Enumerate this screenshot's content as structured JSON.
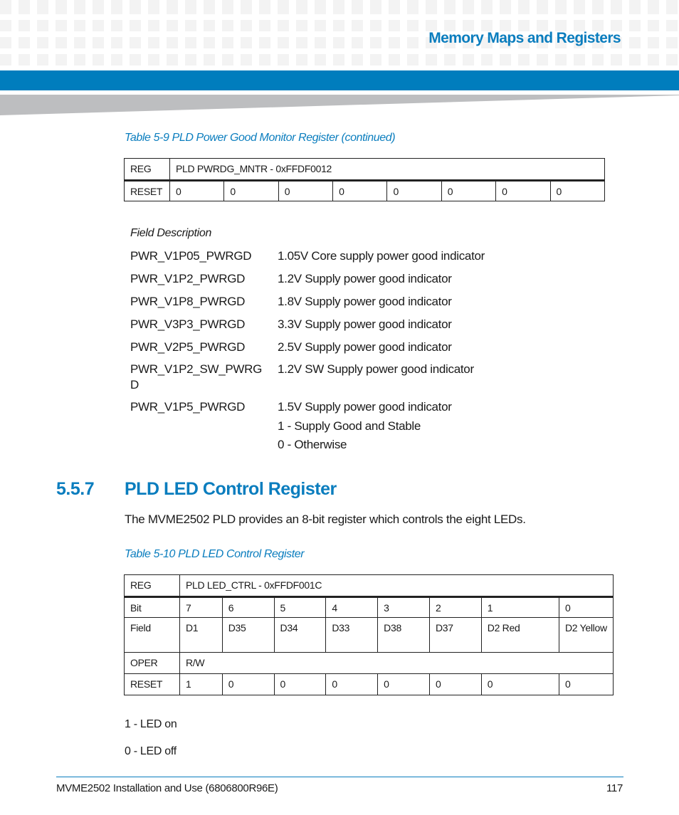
{
  "header": {
    "title": "Memory Maps and Registers"
  },
  "table1": {
    "caption": "Table 5-9 PLD Power Good Monitor Register  (continued)",
    "reg_label": "REG",
    "reg_value": "PLD PWRDG_MNTR - 0xFFDF0012",
    "reset_label": "RESET",
    "reset_values": [
      "0",
      "0",
      "0",
      "0",
      "0",
      "0",
      "0",
      "0"
    ]
  },
  "field_description": {
    "heading": "Field Description",
    "items": [
      {
        "name": "PWR_V1P05_PWRGD",
        "desc": "1.05V Core supply power good indicator"
      },
      {
        "name": "PWR_V1P2_PWRGD",
        "desc": "1.2V Supply power good indicator"
      },
      {
        "name": "PWR_V1P8_PWRGD",
        "desc": "1.8V Supply power good indicator"
      },
      {
        "name": "PWR_V3P3_PWRGD",
        "desc": "3.3V Supply power good indicator"
      },
      {
        "name": "PWR_V2P5_PWRGD",
        "desc": "2.5V Supply power good indicator"
      },
      {
        "name": "PWR_V1P2_SW_PWRG",
        "name_cont": "D",
        "desc": "1.2V SW Supply power good indicator"
      },
      {
        "name": "PWR_V1P5_PWRGD",
        "desc": "1.5V Supply power good indicator"
      }
    ],
    "notes": [
      "1 - Supply Good and Stable",
      "0 - Otherwise"
    ]
  },
  "section": {
    "number": "5.5.7",
    "title": "PLD LED Control Register",
    "body": "The MVME2502 PLD provides an 8-bit register which controls the eight LEDs."
  },
  "table2": {
    "caption": "Table 5-10 PLD LED Control Register",
    "reg_label": "REG",
    "reg_value": "PLD LED_CTRL - 0xFFDF001C",
    "bit_label": "Bit",
    "bits": [
      "7",
      "6",
      "5",
      "4",
      "3",
      "2",
      "1",
      "0"
    ],
    "field_label": "Field",
    "fields": [
      "D1",
      "D35",
      "D34",
      "D33",
      "D38",
      "D37",
      "D2 Red",
      "D2 Yellow"
    ],
    "oper_label": "OPER",
    "oper_value": "R/W",
    "reset_label": "RESET",
    "reset_values": [
      "1",
      "0",
      "0",
      "0",
      "0",
      "0",
      "0",
      "0"
    ]
  },
  "led_notes": [
    "1 - LED on",
    "0 - LED off"
  ],
  "footer": {
    "left": "MVME2502 Installation and Use (6806800R96E)",
    "page": "117"
  },
  "colors": {
    "accent": "#007dbd",
    "wedge": "#bdbec0"
  }
}
